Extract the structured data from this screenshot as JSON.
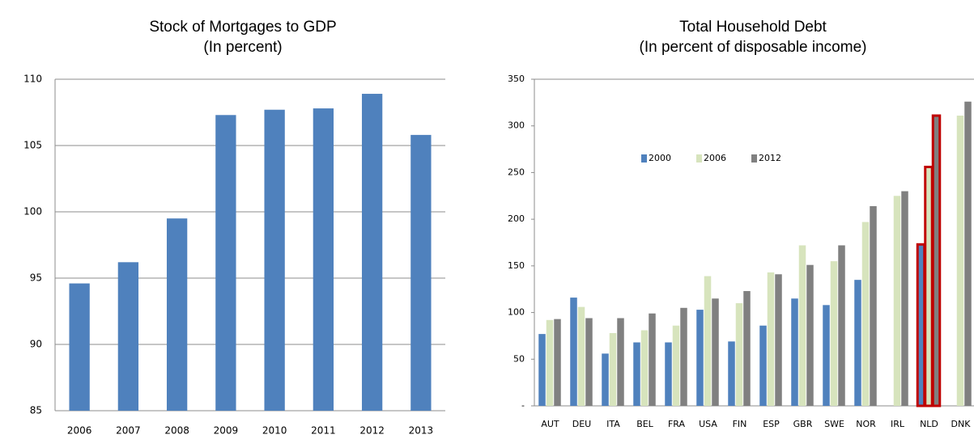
{
  "chart_data": [
    {
      "type": "bar",
      "title": "Stock of Mortgages to GDP",
      "subtitle": "(In percent)",
      "categories": [
        "2006",
        "2007",
        "2008",
        "2009",
        "2010",
        "2011",
        "2012",
        "2013"
      ],
      "values": [
        94.6,
        96.2,
        99.5,
        107.3,
        107.7,
        107.8,
        108.9,
        105.8
      ],
      "color": "#4f81bd",
      "ylim": [
        85,
        110
      ],
      "yticks": [
        85,
        90,
        95,
        100,
        105,
        110
      ],
      "grid": true
    },
    {
      "type": "grouped-bar",
      "title": "Total Household Debt",
      "subtitle": "(In percent of disposable income)",
      "categories": [
        "AUT",
        "DEU",
        "ITA",
        "BEL",
        "FRA",
        "USA",
        "FIN",
        "ESP",
        "GBR",
        "SWE",
        "NOR",
        "IRL",
        "NLD",
        "DNK"
      ],
      "series": [
        {
          "name": "2000",
          "color": "#4f81bd",
          "values": [
            77,
            116,
            56,
            68,
            68,
            103,
            69,
            86,
            115,
            108,
            135,
            null,
            173,
            null
          ]
        },
        {
          "name": "2006",
          "color": "#d7e4bd",
          "values": [
            92,
            106,
            78,
            81,
            86,
            139,
            110,
            143,
            172,
            155,
            197,
            225,
            256,
            311
          ]
        },
        {
          "name": "2012",
          "color": "#808080",
          "values": [
            93,
            94,
            94,
            99,
            105,
            115,
            123,
            141,
            151,
            172,
            214,
            230,
            311,
            326
          ]
        }
      ],
      "ylim": [
        0,
        350
      ],
      "yticks": [
        {
          "value": 0,
          "label": "-"
        },
        50,
        100,
        150,
        200,
        250,
        300,
        350
      ],
      "grid": false,
      "legend": "top",
      "highlight": {
        "category": "NLD",
        "color": "#c00000"
      }
    }
  ]
}
